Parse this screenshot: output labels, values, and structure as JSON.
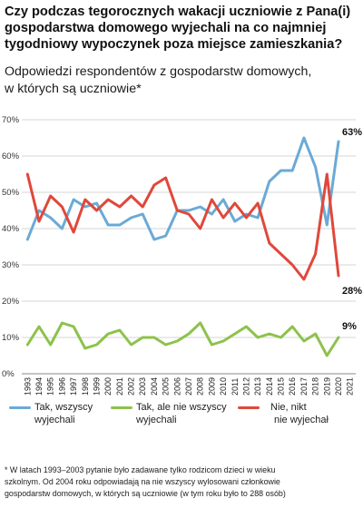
{
  "title": "Czy podczas tegorocznych wakacji uczniowie z Pana(i) gospodarstwa domowego wyjechali na co najmniej tygodniowy wypoczynek poza miejsce zamieszkania?",
  "subtitle_line1": "Odpowiedzi respondentów z gospodarstw domowych,",
  "subtitle_line2": "w których są uczniowie*",
  "footnote_line1": "* W latach 1993–2003 pytanie było zadawane tylko rodzicom dzieci w wieku",
  "footnote_line2": "szkolnym. Od 2004 roku odpowiadają na nie wszyscy wylosowani członkowie",
  "footnote_line3": "gospodarstw domowych, w których są uczniowie (w tym roku było to 288 osób)",
  "colors": {
    "blue": "#6aaad6",
    "green": "#8dc24b",
    "red": "#e0483a",
    "grid": "#d6d6d6"
  },
  "legend": [
    {
      "line1": "Tak, wszyscy",
      "line2": "wyjechali",
      "color": "#6aaad6"
    },
    {
      "line1": "Tak, ale nie wszyscy",
      "line2": "wyjechali",
      "color": "#8dc24b"
    },
    {
      "line1": "Nie, nikt",
      "line2": "nie wyjechał",
      "color": "#e0483a"
    }
  ],
  "chart_data": {
    "type": "line",
    "x": [
      "1993",
      "1994",
      "1995",
      "1996",
      "1997",
      "1998",
      "1999",
      "2000",
      "2001",
      "2002",
      "2003",
      "2004",
      "2005",
      "2006",
      "2007",
      "2008",
      "2009",
      "2010",
      "2011",
      "2012",
      "2013",
      "2014",
      "2015",
      "2016",
      "2017",
      "2018",
      "2019",
      "2020",
      "2021"
    ],
    "series": [
      {
        "name": "Tak, wszyscy wyjechali",
        "color": "#6aaad6",
        "values": [
          37,
          45,
          43,
          40,
          48,
          46,
          47,
          41,
          41,
          43,
          44,
          37,
          38,
          45,
          45,
          46,
          44,
          48,
          42,
          44,
          43,
          53,
          56,
          56,
          65,
          57,
          41,
          64,
          null
        ],
        "end_label": "63%"
      },
      {
        "name": "Tak, ale nie wszyscy wyjechali",
        "color": "#8dc24b",
        "values": [
          8,
          13,
          8,
          14,
          13,
          7,
          8,
          11,
          12,
          8,
          10,
          10,
          8,
          9,
          11,
          14,
          8,
          9,
          11,
          13,
          10,
          11,
          10,
          13,
          9,
          11,
          5,
          10,
          null
        ],
        "end_label": "9%"
      },
      {
        "name": "Nie, nikt nie wyjechał",
        "color": "#e0483a",
        "values": [
          55,
          42,
          49,
          46,
          39,
          48,
          45,
          48,
          46,
          49,
          46,
          52,
          54,
          45,
          44,
          40,
          48,
          43,
          47,
          43,
          47,
          36,
          33,
          30,
          26,
          33,
          55,
          27,
          null
        ],
        "end_label": "28%"
      }
    ],
    "yticks": [
      "0%",
      "10%",
      "20%",
      "30%",
      "40%",
      "50%",
      "60%",
      "70%"
    ],
    "ylim": [
      0,
      70
    ],
    "grid": true
  }
}
